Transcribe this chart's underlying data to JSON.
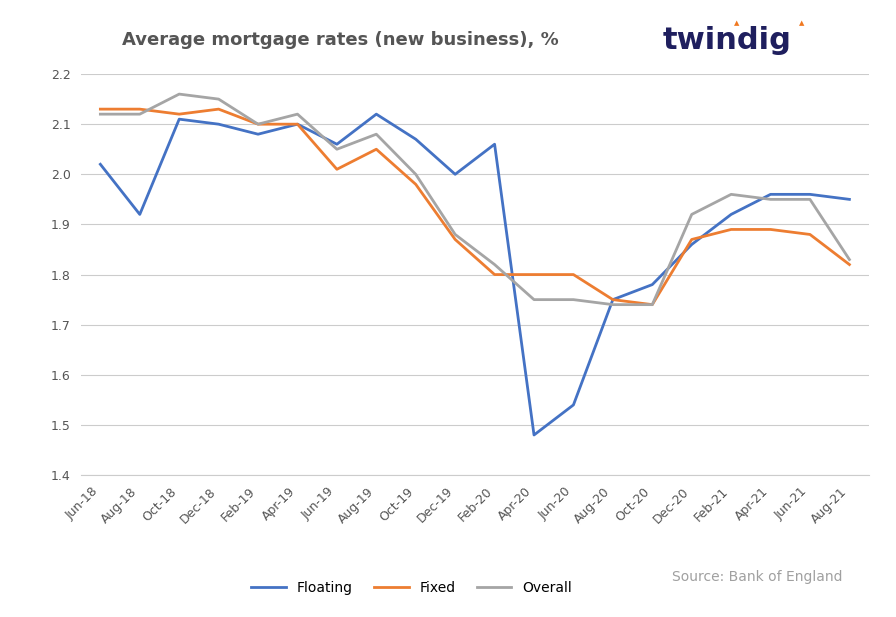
{
  "title": "Average mortgage rates (new business), %",
  "source_text": "Source: Bank of England",
  "ylim": [
    1.4,
    2.2
  ],
  "yticks": [
    1.4,
    1.5,
    1.6,
    1.7,
    1.8,
    1.9,
    2.0,
    2.1,
    2.2
  ],
  "x_labels": [
    "Jun-18",
    "Aug-18",
    "Oct-18",
    "Dec-18",
    "Feb-19",
    "Apr-19",
    "Jun-19",
    "Aug-19",
    "Oct-19",
    "Dec-19",
    "Feb-20",
    "Apr-20",
    "Jun-20",
    "Aug-20",
    "Oct-20",
    "Dec-20",
    "Feb-21",
    "Apr-21",
    "Jun-21",
    "Aug-21"
  ],
  "floating": [
    2.02,
    1.92,
    2.11,
    2.1,
    2.08,
    2.1,
    2.06,
    2.12,
    2.07,
    2.0,
    2.06,
    1.48,
    1.54,
    1.75,
    1.78,
    1.86,
    1.92,
    1.96,
    1.96,
    1.95
  ],
  "fixed": [
    2.13,
    2.13,
    2.12,
    2.13,
    2.1,
    2.1,
    2.01,
    2.05,
    1.98,
    1.87,
    1.8,
    1.8,
    1.8,
    1.75,
    1.74,
    1.87,
    1.89,
    1.89,
    1.88,
    1.82
  ],
  "overall": [
    2.12,
    2.12,
    2.16,
    2.15,
    2.1,
    2.12,
    2.05,
    2.08,
    2.0,
    1.88,
    1.82,
    1.75,
    1.75,
    1.74,
    1.74,
    1.92,
    1.96,
    1.95,
    1.95,
    1.83
  ],
  "floating_color": "#4472C4",
  "fixed_color": "#ED7D31",
  "overall_color": "#A5A5A5",
  "background_color": "#FFFFFF",
  "title_fontsize": 13,
  "axis_fontsize": 9,
  "legend_fontsize": 10,
  "source_fontsize": 10,
  "twindig_color": "#1F1F5E",
  "twindig_orange": "#F07820",
  "twindig_fontsize": 22
}
